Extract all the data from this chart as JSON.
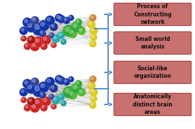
{
  "background_color": "#ffffff",
  "boxes": [
    "Process of\nConstructing\nnetwork",
    "Small world\nanalysis",
    "Social-like\norganization",
    "Anatomically\ndistinct brain\nareas"
  ],
  "box_face_color": "#c97070",
  "box_edge_color": "#aa4444",
  "arrow_color": "#4488cc",
  "text_color": "#111111",
  "font_size": 5.5,
  "node_groups_top": [
    [
      0,
      58,
      8,
      "#1133aa"
    ],
    [
      12,
      62,
      7,
      "#1133aa"
    ],
    [
      22,
      58,
      6,
      "#1133aa"
    ],
    [
      -8,
      50,
      9,
      "#1133aa"
    ],
    [
      5,
      48,
      7,
      "#223399"
    ],
    [
      -15,
      45,
      11,
      "#1133aa"
    ],
    [
      -25,
      48,
      9,
      "#1133aa"
    ],
    [
      -30,
      55,
      8,
      "#1133aa"
    ],
    [
      -20,
      58,
      7,
      "#334499"
    ],
    [
      -35,
      42,
      7,
      "#1133aa"
    ],
    [
      -10,
      38,
      6,
      "#223399"
    ],
    [
      2,
      35,
      5,
      "#334499"
    ],
    [
      -5,
      28,
      8,
      "#cc2222"
    ],
    [
      -15,
      25,
      9,
      "#cc2222"
    ],
    [
      -25,
      28,
      7,
      "#aa1111"
    ],
    [
      -20,
      18,
      8,
      "#cc2222"
    ],
    [
      -8,
      18,
      6,
      "#cc2222"
    ],
    [
      -30,
      18,
      6,
      "#cc2222"
    ],
    [
      -35,
      30,
      5,
      "#cc2222"
    ],
    [
      5,
      20,
      5,
      "#cc3333"
    ],
    [
      8,
      30,
      7,
      "#22aaaa"
    ],
    [
      15,
      35,
      6,
      "#22aaaa"
    ],
    [
      18,
      25,
      5,
      "#229999"
    ],
    [
      25,
      42,
      10,
      "#33aa33"
    ],
    [
      35,
      48,
      9,
      "#33aa33"
    ],
    [
      30,
      38,
      8,
      "#55bb33"
    ],
    [
      42,
      42,
      7,
      "#55bb33"
    ],
    [
      38,
      55,
      6,
      "#33aa33"
    ],
    [
      55,
      52,
      7,
      "#ddcc22"
    ],
    [
      58,
      42,
      7,
      "#ddcc22"
    ],
    [
      58,
      32,
      6,
      "#ddcc22"
    ],
    [
      57,
      22,
      6,
      "#ddcc22"
    ],
    [
      57,
      62,
      6,
      "#cc8833"
    ],
    [
      15,
      60,
      7,
      "#1133aa"
    ],
    [
      28,
      62,
      5,
      "#1133aa"
    ]
  ],
  "node_groups_bot": [
    [
      0,
      58,
      8,
      "#1133aa"
    ],
    [
      12,
      62,
      7,
      "#1133aa"
    ],
    [
      22,
      58,
      6,
      "#1133aa"
    ],
    [
      -8,
      50,
      9,
      "#1133aa"
    ],
    [
      5,
      48,
      7,
      "#223399"
    ],
    [
      -15,
      45,
      11,
      "#1133aa"
    ],
    [
      -25,
      48,
      9,
      "#1133aa"
    ],
    [
      -30,
      55,
      8,
      "#1133aa"
    ],
    [
      -20,
      58,
      7,
      "#334499"
    ],
    [
      -35,
      42,
      7,
      "#1133aa"
    ],
    [
      -10,
      38,
      6,
      "#223399"
    ],
    [
      2,
      35,
      5,
      "#334499"
    ],
    [
      -5,
      28,
      8,
      "#cc2222"
    ],
    [
      -15,
      25,
      9,
      "#cc2222"
    ],
    [
      -25,
      28,
      7,
      "#aa1111"
    ],
    [
      -20,
      18,
      8,
      "#cc2222"
    ],
    [
      -8,
      18,
      6,
      "#cc2222"
    ],
    [
      -30,
      18,
      6,
      "#cc2222"
    ],
    [
      -35,
      30,
      5,
      "#cc2222"
    ],
    [
      5,
      20,
      5,
      "#cc3333"
    ],
    [
      8,
      30,
      7,
      "#22aaaa"
    ],
    [
      15,
      35,
      6,
      "#22aaaa"
    ],
    [
      18,
      25,
      5,
      "#229999"
    ],
    [
      25,
      42,
      10,
      "#33aa33"
    ],
    [
      35,
      48,
      9,
      "#33aa33"
    ],
    [
      30,
      38,
      8,
      "#55bb33"
    ],
    [
      42,
      42,
      7,
      "#55bb33"
    ],
    [
      38,
      55,
      6,
      "#33aa33"
    ],
    [
      55,
      52,
      7,
      "#ddcc22"
    ],
    [
      58,
      42,
      7,
      "#ddcc22"
    ],
    [
      58,
      32,
      6,
      "#ddcc22"
    ],
    [
      57,
      22,
      6,
      "#ddcc22"
    ],
    [
      57,
      62,
      6,
      "#cc8833"
    ],
    [
      15,
      60,
      7,
      "#1133aa"
    ],
    [
      28,
      62,
      5,
      "#1133aa"
    ]
  ]
}
